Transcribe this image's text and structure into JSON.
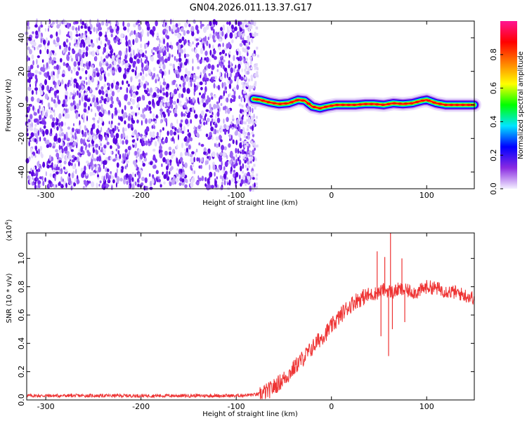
{
  "chart_data": [
    {
      "type": "heatmap",
      "title": "GN04.2026.011.13.37.G17",
      "xlabel": "Height of straight line (km)",
      "ylabel": "Frequency (Hz)",
      "xlim": [
        -320,
        150
      ],
      "ylim": [
        -50,
        50
      ],
      "xticks": [
        -300,
        -200,
        -100,
        0,
        100
      ],
      "yticks": [
        40,
        20,
        0,
        -20,
        -40
      ],
      "noise_region_x": [
        -320,
        -80
      ],
      "ridge_line": {
        "x": [
          -82,
          -75,
          -65,
          -55,
          -45,
          -35,
          -28,
          -20,
          -12,
          -5,
          5,
          15,
          25,
          35,
          45,
          55,
          65,
          75,
          85,
          95,
          100,
          110,
          120,
          130,
          140,
          150
        ],
        "y": [
          3.5,
          3,
          1.5,
          0.5,
          1,
          3,
          2.5,
          -1,
          -2,
          -1,
          0,
          0,
          0,
          0.5,
          0.5,
          0,
          1,
          0.5,
          1,
          2.5,
          3,
          1,
          0,
          0,
          0,
          0
        ]
      },
      "colorbar": {
        "label": "Normalized spectral amplitude",
        "range": [
          0,
          1
        ],
        "ticks": [
          "0.0",
          "0.2",
          "0.4",
          "0.6",
          "0.8"
        ],
        "colors": [
          "#f4f0ff",
          "#8a2be2",
          "#0000ff",
          "#00e5ff",
          "#00ff00",
          "#ffff00",
          "#ff8000",
          "#ff0000",
          "#ff1493"
        ]
      }
    },
    {
      "type": "line",
      "xlabel": "Height of straight line (km)",
      "ylabel": "SNR (10 * v/v)",
      "scale_label_prefix": "(x10",
      "scale_label_exponent": "4",
      "scale_label_suffix": ")",
      "xlim": [
        -320,
        150
      ],
      "ylim": [
        0,
        1.18
      ],
      "xticks": [
        -300,
        -200,
        -100,
        0,
        100
      ],
      "yticks": [
        "0.0",
        "0.2",
        "0.4",
        "0.6",
        "0.8",
        "1.0"
      ],
      "ytick_values": [
        0,
        0.2,
        0.4,
        0.6,
        0.8,
        1.0
      ],
      "color": "#ee3333",
      "series": [
        {
          "name": "SNR",
          "x": [
            -320,
            -200,
            -100,
            -75,
            -65,
            -55,
            -45,
            -35,
            -25,
            -15,
            -5,
            5,
            15,
            25,
            35,
            45,
            50,
            55,
            60,
            65,
            70,
            80,
            90,
            100,
            110,
            120,
            130,
            140,
            150
          ],
          "y": [
            0.03,
            0.03,
            0.03,
            0.04,
            0.07,
            0.12,
            0.18,
            0.26,
            0.33,
            0.41,
            0.48,
            0.56,
            0.64,
            0.7,
            0.73,
            0.75,
            0.76,
            0.78,
            0.77,
            0.76,
            0.78,
            0.77,
            0.76,
            0.8,
            0.79,
            0.77,
            0.76,
            0.74,
            0.72
          ]
        }
      ],
      "spikes": [
        {
          "x": 48,
          "y": 1.05
        },
        {
          "x": 52,
          "y": 0.45
        },
        {
          "x": 56,
          "y": 1.01
        },
        {
          "x": 60,
          "y": 0.31
        },
        {
          "x": 62,
          "y": 1.18
        },
        {
          "x": 64,
          "y": 0.5
        },
        {
          "x": 74,
          "y": 1.0
        },
        {
          "x": 77,
          "y": 0.55
        }
      ]
    }
  ]
}
